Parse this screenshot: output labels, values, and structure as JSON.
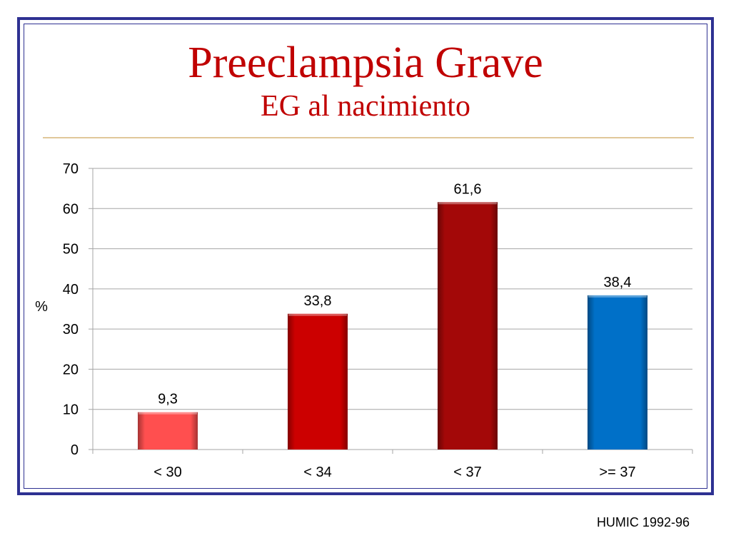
{
  "slide": {
    "title": "Preeclampsia Grave",
    "subtitle": "EG al nacimiento",
    "source": "HUMIC 1992-96"
  },
  "colors": {
    "frame": "#2e3192",
    "title": "#c00000",
    "divider": "#e0c89a",
    "gridline": "#a6a6a6"
  },
  "chart_data": {
    "type": "bar",
    "title": "",
    "xlabel": "",
    "ylabel": "%",
    "categories": [
      "< 30",
      "< 34",
      "< 37",
      ">= 37"
    ],
    "values": [
      9.3,
      33.8,
      61.6,
      38.4
    ],
    "data_labels": [
      "9,3",
      "33,8",
      "61,6",
      "38,4"
    ],
    "bar_colors": [
      "#ff4f4f",
      "#cc0000",
      "#a30808",
      "#0070c8"
    ],
    "ylim": [
      0,
      70
    ],
    "yticks": [
      0,
      10,
      20,
      30,
      40,
      50,
      60,
      70
    ],
    "grid": true,
    "legend": "none"
  }
}
